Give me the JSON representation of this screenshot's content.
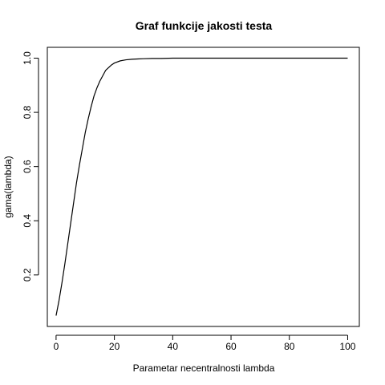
{
  "chart_data": {
    "type": "line",
    "title": "Graf funkcije jakosti testa",
    "xlabel": "Parametar necentralnosti lambda",
    "ylabel": "gama(lambda)",
    "xlim": [
      -3,
      104
    ],
    "ylim": [
      0.01,
      1.04
    ],
    "x_ticks": [
      0,
      20,
      40,
      60,
      80,
      100
    ],
    "y_ticks": [
      0.2,
      0.4,
      0.6,
      0.8,
      1.0
    ],
    "x_tick_labels": [
      "0",
      "20",
      "40",
      "60",
      "80",
      "100"
    ],
    "y_tick_labels": [
      "0.2",
      "0.4",
      "0.6",
      "0.8",
      "1.0"
    ],
    "grid": false,
    "series": [
      {
        "x": [
          0,
          1,
          2,
          3,
          4,
          5,
          6,
          7,
          8,
          9,
          10,
          11,
          12,
          13,
          14,
          15,
          16,
          17,
          18,
          19,
          20,
          22,
          24,
          26,
          28,
          30,
          33,
          36,
          40,
          50,
          60,
          70,
          80,
          90,
          100
        ],
        "y": [
          0.05,
          0.105,
          0.17,
          0.24,
          0.315,
          0.39,
          0.465,
          0.54,
          0.605,
          0.665,
          0.725,
          0.775,
          0.82,
          0.86,
          0.89,
          0.915,
          0.935,
          0.955,
          0.965,
          0.975,
          0.982,
          0.99,
          0.994,
          0.996,
          0.997,
          0.998,
          0.999,
          0.999,
          1.0,
          1.0,
          1.0,
          1.0,
          1.0,
          1.0,
          1.0
        ]
      }
    ]
  }
}
